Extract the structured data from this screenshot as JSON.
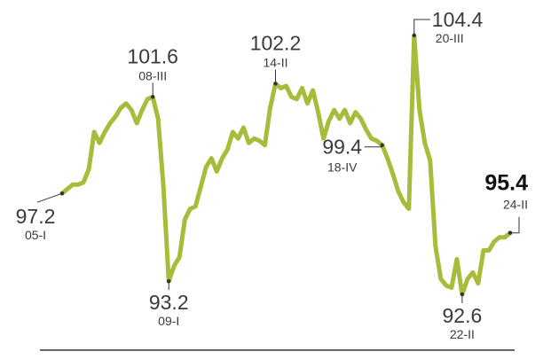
{
  "chart_data": {
    "type": "line",
    "title": "",
    "xlabel": "",
    "ylabel": "",
    "ylim": [
      91.8,
      105.2
    ],
    "line_color": "#a8bb3a",
    "axis_color": "#333333",
    "series": [
      {
        "values": [
          97.2,
          97.4,
          97.6,
          97.6,
          97.7,
          98.3,
          100.0,
          99.5,
          100.0,
          100.4,
          100.7,
          101.1,
          101.3,
          101.0,
          100.4,
          101.0,
          101.5,
          101.6,
          100.6,
          97.5,
          93.2,
          93.9,
          94.3,
          96.0,
          96.5,
          96.6,
          97.5,
          98.4,
          98.8,
          98.2,
          98.8,
          99.2,
          100.0,
          99.7,
          100.2,
          99.5,
          99.7,
          99.6,
          99.4,
          101.1,
          102.2,
          102.0,
          102.1,
          101.6,
          101.5,
          102.0,
          101.3,
          101.9,
          100.9,
          99.7,
          100.5,
          101.0,
          100.6,
          101.0,
          100.4,
          100.9,
          100.6,
          100.1,
          99.7,
          99.6,
          99.4,
          98.8,
          98.1,
          97.3,
          96.8,
          96.5,
          104.4,
          101.0,
          99.5,
          98.7,
          94.8,
          93.3,
          93.0,
          92.9,
          94.2,
          92.6,
          93.3,
          93.6,
          93.1,
          94.6,
          94.6,
          95.0,
          95.2,
          95.2,
          95.4
        ]
      }
    ],
    "annotations": [
      {
        "value": "97.2",
        "date": "05-I",
        "index": 0,
        "anchor": "below-left"
      },
      {
        "value": "101.6",
        "date": "08-III",
        "index": 17,
        "anchor": "above"
      },
      {
        "value": "93.2",
        "date": "09-I",
        "index": 20,
        "anchor": "below"
      },
      {
        "value": "102.2",
        "date": "14-II",
        "index": 40,
        "anchor": "above"
      },
      {
        "value": "99.4",
        "date": "18-IV",
        "index": 60,
        "anchor": "left"
      },
      {
        "value": "104.4",
        "date": "20-III",
        "index": 66,
        "anchor": "right"
      },
      {
        "value": "92.6",
        "date": "22-II",
        "index": 75,
        "anchor": "below"
      },
      {
        "value": "95.4",
        "date": "24-II",
        "index": 84,
        "anchor": "last"
      }
    ]
  }
}
